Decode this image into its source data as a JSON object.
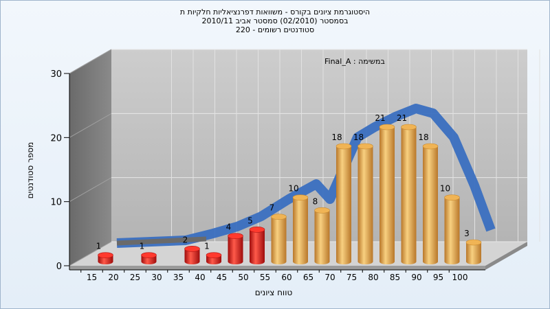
{
  "chart_data": {
    "type": "bar",
    "title_lines": [
      "היסטוגרמת ציונים בקורס - משוואות דפרנציאליות חלקיות ת",
      "בסמסטר  (02/2010)  סמסטר אביב 2010/11",
      "סטודנטים רשומים - 220"
    ],
    "annotation": "במשימה : Final_A",
    "xlabel": "טווח ציונים",
    "ylabel": "מספר סטודנטים",
    "categories": [
      "15",
      "20",
      "25",
      "30",
      "35",
      "40",
      "45",
      "50",
      "55",
      "60",
      "65",
      "70",
      "75",
      "80",
      "85",
      "90",
      "95",
      "100"
    ],
    "series": [
      {
        "values": [
          1,
          null,
          1,
          null,
          2,
          1,
          4,
          5,
          7,
          10,
          8,
          18,
          18,
          21,
          21,
          18,
          10,
          3
        ]
      }
    ],
    "bar_colors": [
      "#d41a1a",
      "#d41a1a",
      "#d41a1a",
      "#d41a1a",
      "#d41a1a",
      "#d41a1a",
      "#d41a1a",
      "#d41a1a",
      "#e0a040",
      "#e0a040",
      "#e0a040",
      "#e0a040",
      "#e0a040",
      "#e0a040",
      "#e0a040",
      "#e0a040",
      "#e0a040",
      "#e0a040"
    ],
    "yticks": [
      0,
      10,
      20,
      30
    ],
    "ylim": [
      0,
      30
    ],
    "grid": true,
    "curve_color": "#3a6fc0"
  }
}
